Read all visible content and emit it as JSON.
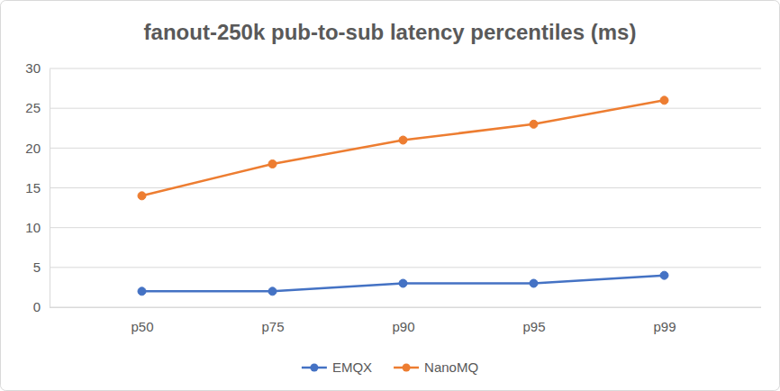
{
  "chart_data": {
    "type": "line",
    "title": "fanout-250k pub-to-sub latency percentiles (ms)",
    "categories": [
      "p50",
      "p75",
      "p90",
      "p95",
      "p99"
    ],
    "series": [
      {
        "name": "EMQX",
        "color": "#4472c4",
        "values": [
          2,
          2,
          3,
          3,
          4
        ]
      },
      {
        "name": "NanoMQ",
        "color": "#ed7d31",
        "values": [
          14,
          18,
          21,
          23,
          26
        ]
      }
    ],
    "ylim": [
      0,
      30
    ],
    "yticks": [
      0,
      5,
      10,
      15,
      20,
      25,
      30
    ],
    "grid": true,
    "legend": "bottom",
    "marker": "circle",
    "line_style": "solid"
  }
}
